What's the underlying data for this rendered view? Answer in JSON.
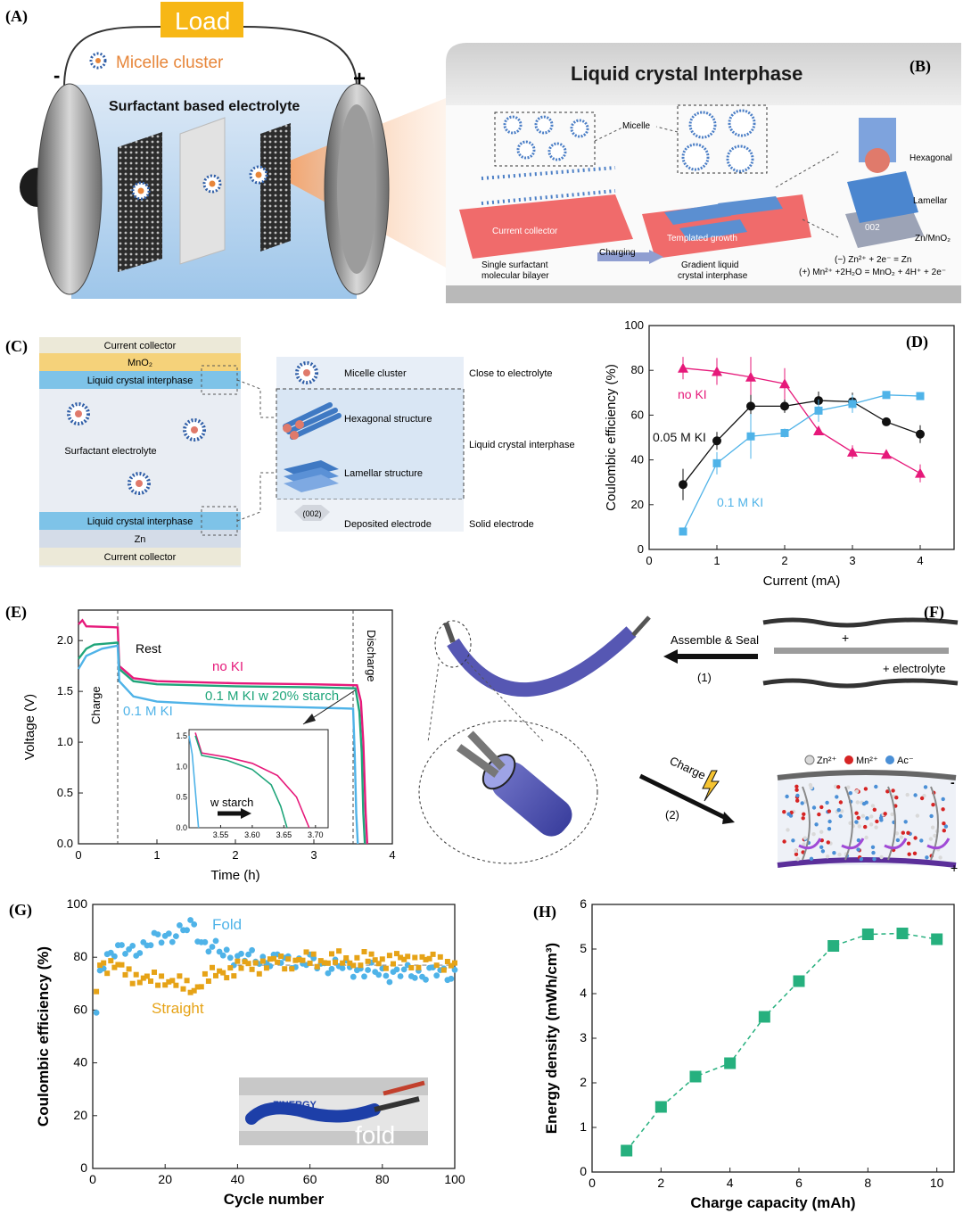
{
  "panel_labels": {
    "a": "(A)",
    "b": "(B)",
    "c": "(C)",
    "d": "(D)",
    "e": "(E)",
    "f": "(F)",
    "g": "(G)",
    "h": "(H)"
  },
  "panel_a": {
    "load": "Load",
    "micelle_cluster": "Micelle cluster",
    "electrolyte": "Surfactant based electrolyte",
    "minus": "-",
    "plus": "+"
  },
  "panel_b": {
    "title": "Liquid crystal Interphase",
    "micelle": "Micelle",
    "current_collector": "Current collector",
    "templated_growth": "Templated growth",
    "charging": "Charging",
    "single_bilayer_1": "Single surfactant",
    "single_bilayer_2": "molecular bilayer",
    "gradient_1": "Gradient liquid",
    "gradient_2": "crystal interphase",
    "hexagonal": "Hexagonal",
    "lamellar": "Lamellar",
    "zn_mno2": "Zn/MnO₂",
    "facet": "002",
    "eq1": "(−) Zn²⁺ + 2e⁻ = Zn",
    "eq2": "(+) Mn²⁺ +2H₂O = MnO₂ + 4H⁺ + 2e⁻"
  },
  "panel_c": {
    "layers_top": [
      "Current collector",
      "MnO₂",
      "Liquid crystal interphase"
    ],
    "middle": "Surfactant electrolyte",
    "layers_bottom": [
      "Liquid crystal interphase",
      "Zn",
      "Current collector"
    ],
    "legend": [
      {
        "item": "Micelle cluster",
        "region": "Close to electrolyte"
      },
      {
        "item": "Hexagonal structure",
        "region": "Liquid crystal interphase"
      },
      {
        "item": "Lamellar structure",
        "region": ""
      },
      {
        "item": "Deposited electrode",
        "region": "Solid electrode",
        "mark": "(002)"
      }
    ]
  },
  "panel_d": {
    "xlabel": "Current (mA)",
    "ylabel": "Coulombic efficiency (%)",
    "xticks": [
      "0",
      "1",
      "2",
      "3",
      "4"
    ],
    "yticks": [
      "0",
      "20",
      "40",
      "60",
      "80",
      "100"
    ],
    "series_labels": [
      "no KI",
      "0.05 M KI",
      "0.1 M KI"
    ],
    "colors": {
      "no_ki": "#e6197a",
      "ki_005": "#111111",
      "ki_01": "#4fb3e8"
    }
  },
  "panel_e": {
    "xlabel": "Time (h)",
    "ylabel": "Voltage (V)",
    "xticks": [
      "0",
      "1",
      "2",
      "3",
      "4"
    ],
    "yticks": [
      "0.0",
      "0.5",
      "1.0",
      "1.5",
      "2.0"
    ],
    "charge": "Charge",
    "rest": "Rest",
    "discharge": "Discharge",
    "series_labels": [
      "no KI",
      "0.1 M KI w 20% starch",
      "0.1 M KI"
    ],
    "inset_xticks": [
      "3.55",
      "3.60",
      "3.65",
      "3.70"
    ],
    "inset_yticks": [
      "1.5",
      "1.0",
      "0.5",
      "0.0"
    ],
    "inset_label": "w starch",
    "colors": {
      "no_ki": "#e6197a",
      "starch": "#1fa57a",
      "ki_01": "#4fb3e8"
    }
  },
  "panel_f": {
    "assemble": "Assemble & Seal",
    "step1": "(1)",
    "plus": "+",
    "electrolyte": "+ electrolyte",
    "charge": "Charge",
    "step2": "(2)",
    "ions": [
      "Zn²⁺",
      "Mn²⁺",
      "Ac⁻"
    ],
    "minus": "-",
    "plus2": "+"
  },
  "panel_g": {
    "xlabel": "Cycle number",
    "ylabel": "Coulombic efficiency (%)",
    "xticks": [
      "0",
      "20",
      "40",
      "60",
      "80",
      "100"
    ],
    "yticks": [
      "0",
      "20",
      "40",
      "60",
      "80",
      "100"
    ],
    "series_labels": [
      "Fold",
      "Straight"
    ],
    "photo_brand": "ZINERGY",
    "photo_label": "fold",
    "colors": {
      "fold": "#4fb3e8",
      "straight": "#e6a317"
    }
  },
  "panel_h": {
    "xlabel": "Charge capacity (mAh)",
    "ylabel": "Energy density (mWh/cm³)",
    "xticks": [
      "0",
      "2",
      "4",
      "6",
      "8",
      "10"
    ],
    "yticks": [
      "0",
      "1",
      "2",
      "3",
      "4",
      "5",
      "6"
    ],
    "color": "#26b07e"
  },
  "chart_data": [
    {
      "panel": "D",
      "type": "line",
      "xlabel": "Current (mA)",
      "ylabel": "Coulombic efficiency (%)",
      "xlim": [
        0,
        4.5
      ],
      "ylim": [
        0,
        100
      ],
      "x": [
        0.5,
        1.0,
        1.5,
        2.0,
        2.5,
        3.0,
        3.5,
        4.0
      ],
      "series": [
        {
          "name": "no KI",
          "values": [
            81,
            79.5,
            77,
            74,
            53,
            43.5,
            42.5,
            34
          ],
          "errors": [
            5,
            6,
            9,
            7,
            0,
            3,
            0,
            4
          ]
        },
        {
          "name": "0.05 M KI",
          "values": [
            29,
            48.5,
            64,
            64,
            66.5,
            66,
            57,
            51.5
          ],
          "errors": [
            7,
            4,
            5,
            3,
            4,
            4,
            0,
            4
          ]
        },
        {
          "name": "0.1 M KI",
          "values": [
            8,
            38.5,
            50.5,
            52,
            62,
            65,
            69,
            68.5
          ],
          "errors": [
            0,
            5,
            10,
            2,
            5,
            4,
            0,
            0
          ]
        }
      ]
    },
    {
      "panel": "E",
      "type": "line",
      "xlabel": "Time (h)",
      "ylabel": "Voltage (V)",
      "xlim": [
        0,
        4
      ],
      "ylim": [
        0,
        2.3
      ],
      "series": [
        {
          "name": "no KI",
          "x": [
            0,
            0.05,
            0.1,
            0.5,
            0.52,
            0.7,
            1.0,
            2.0,
            3.0,
            3.55,
            3.6,
            3.63,
            3.66,
            3.68
          ],
          "values": [
            2.16,
            2.2,
            2.14,
            2.13,
            1.75,
            1.63,
            1.6,
            1.58,
            1.57,
            1.56,
            1.4,
            1.0,
            0.3,
            0.0
          ]
        },
        {
          "name": "0.1 M KI w 20% starch",
          "x": [
            0,
            0.1,
            0.2,
            0.5,
            0.52,
            0.7,
            1.0,
            2.0,
            3.0,
            3.53,
            3.58,
            3.61,
            3.63,
            3.65
          ],
          "values": [
            1.82,
            1.92,
            1.96,
            1.98,
            1.72,
            1.6,
            1.57,
            1.55,
            1.54,
            1.53,
            1.3,
            0.9,
            0.3,
            0.0
          ]
        },
        {
          "name": "0.1 M KI",
          "x": [
            0,
            0.1,
            0.3,
            0.5,
            0.52,
            0.7,
            1.0,
            2.0,
            3.0,
            3.5,
            3.52,
            3.54,
            3.56
          ],
          "values": [
            1.72,
            1.85,
            1.92,
            1.95,
            1.6,
            1.45,
            1.4,
            1.36,
            1.34,
            1.33,
            0.9,
            0.3,
            0.0
          ]
        }
      ],
      "inset": {
        "xlim": [
          3.5,
          3.72
        ],
        "ylim": [
          0,
          1.6
        ],
        "series": [
          {
            "name": "no KI",
            "x": [
              3.51,
              3.52,
              3.56,
              3.6,
              3.64,
              3.67,
              3.69
            ],
            "values": [
              1.55,
              1.22,
              1.15,
              1.05,
              0.85,
              0.5,
              0.0
            ]
          },
          {
            "name": "0.1 M KI w 20% starch",
            "x": [
              3.51,
              3.52,
              3.56,
              3.6,
              3.63,
              3.645,
              3.655
            ],
            "values": [
              1.5,
              1.18,
              1.1,
              0.95,
              0.7,
              0.35,
              0.0
            ]
          },
          {
            "name": "0.1 M KI",
            "x": [
              3.5,
              3.505,
              3.51,
              3.515
            ],
            "values": [
              1.5,
              1.2,
              0.6,
              0.0
            ]
          }
        ]
      }
    },
    {
      "panel": "G",
      "type": "scatter",
      "xlabel": "Cycle number",
      "ylabel": "Coulombic efficiency (%)",
      "xlim": [
        0,
        100
      ],
      "ylim": [
        0,
        100
      ],
      "reference_line": 77,
      "series": [
        {
          "name": "Fold",
          "anchors": [
            [
              1,
              59
            ],
            [
              2,
              75
            ],
            [
              5,
              83
            ],
            [
              10,
              82
            ],
            [
              15,
              85
            ],
            [
              20,
              88
            ],
            [
              25,
              90
            ],
            [
              28,
              92
            ],
            [
              30,
              86
            ],
            [
              35,
              82
            ],
            [
              40,
              80
            ],
            [
              50,
              79
            ],
            [
              60,
              78
            ],
            [
              70,
              76
            ],
            [
              80,
              74
            ],
            [
              90,
              74
            ],
            [
              100,
              74
            ]
          ]
        },
        {
          "name": "Straight",
          "anchors": [
            [
              1,
              67
            ],
            [
              2,
              77
            ],
            [
              5,
              77
            ],
            [
              10,
              74
            ],
            [
              15,
              71
            ],
            [
              20,
              72
            ],
            [
              25,
              69
            ],
            [
              28,
              68
            ],
            [
              30,
              71
            ],
            [
              35,
              74
            ],
            [
              40,
              76
            ],
            [
              50,
              78
            ],
            [
              60,
              79
            ],
            [
              70,
              79
            ],
            [
              80,
              79
            ],
            [
              90,
              79
            ],
            [
              100,
              78
            ]
          ]
        }
      ]
    },
    {
      "panel": "H",
      "type": "line",
      "xlabel": "Charge capacity (mAh)",
      "ylabel": "Energy density (mWh/cm³)",
      "xlim": [
        0,
        10.5
      ],
      "ylim": [
        0,
        6
      ],
      "x": [
        1,
        2,
        3,
        4,
        5,
        6,
        7,
        8,
        9,
        10
      ],
      "values": [
        0.48,
        1.46,
        2.14,
        2.44,
        3.48,
        4.28,
        5.07,
        5.33,
        5.35,
        5.22
      ]
    }
  ]
}
